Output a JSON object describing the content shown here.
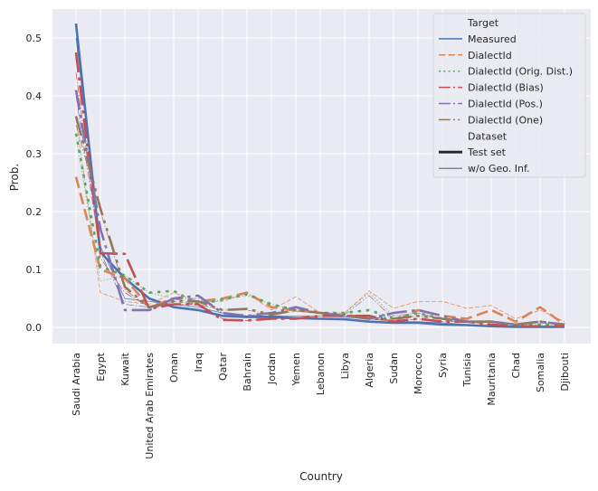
{
  "chart_data": {
    "type": "line",
    "xlabel": "Country",
    "ylabel": "Prob.",
    "ylim": [
      -0.028,
      0.55
    ],
    "yticks": [
      0.0,
      0.1,
      0.2,
      0.3,
      0.4,
      0.5
    ],
    "ytick_labels": [
      "0.0",
      "0.1",
      "0.2",
      "0.3",
      "0.4",
      "0.5"
    ],
    "grid": true,
    "legend_position": "top-right",
    "categories": [
      "Saudi Arabia",
      "Egypt",
      "Kuwait",
      "United Arab Emirates",
      "Oman",
      "Iraq",
      "Qatar",
      "Bahrain",
      "Jordan",
      "Yemen",
      "Lebanon",
      "Libya",
      "Algeria",
      "Sudan",
      "Morocco",
      "Syria",
      "Tunisia",
      "Mauritania",
      "Chad",
      "Somalia",
      "Djibouti"
    ],
    "legend": {
      "target_title": "Target",
      "dataset_title": "Dataset",
      "dataset_entries": [
        {
          "name": "Test set",
          "style": "thick"
        },
        {
          "name": "w/o Geo. Inf.",
          "style": "thin"
        }
      ]
    },
    "series": [
      {
        "name": "Measured",
        "color": "#4c72b0",
        "dash": "solid",
        "dataset": "Test set",
        "values": [
          0.525,
          0.13,
          0.085,
          0.05,
          0.035,
          0.03,
          0.02,
          0.018,
          0.018,
          0.016,
          0.015,
          0.014,
          0.01,
          0.008,
          0.008,
          0.005,
          0.004,
          0.002,
          0.001,
          0.001,
          0.001
        ]
      },
      {
        "name": "DialectId",
        "color": "#dd8452",
        "dash": "dashed",
        "dataset": "Test set",
        "values": [
          0.26,
          0.1,
          0.085,
          0.035,
          0.05,
          0.045,
          0.05,
          0.06,
          0.035,
          0.03,
          0.025,
          0.02,
          0.02,
          0.01,
          0.03,
          0.02,
          0.015,
          0.03,
          0.01,
          0.035,
          0.005
        ]
      },
      {
        "name": "DialectId (Orig. Dist.)",
        "color": "#55a868",
        "dash": "dotted",
        "dataset": "Test set",
        "values": [
          0.335,
          0.105,
          0.09,
          0.06,
          0.063,
          0.04,
          0.048,
          0.057,
          0.04,
          0.03,
          0.025,
          0.025,
          0.03,
          0.015,
          0.025,
          0.015,
          0.01,
          0.01,
          0.005,
          0.005,
          0.003
        ]
      },
      {
        "name": "DialectId (Bias)",
        "color": "#c44e52",
        "dash": "dashdot",
        "dataset": "Test set",
        "values": [
          0.475,
          0.128,
          0.127,
          0.032,
          0.04,
          0.04,
          0.013,
          0.012,
          0.015,
          0.015,
          0.02,
          0.02,
          0.02,
          0.01,
          0.015,
          0.01,
          0.01,
          0.005,
          0.002,
          0.002,
          0.002
        ]
      },
      {
        "name": "DialectId (Pos.)",
        "color": "#8172b3",
        "dash": "dashdot",
        "dataset": "Test set",
        "values": [
          0.41,
          0.17,
          0.03,
          0.03,
          0.05,
          0.055,
          0.025,
          0.02,
          0.025,
          0.035,
          0.025,
          0.02,
          0.015,
          0.025,
          0.03,
          0.02,
          0.01,
          0.01,
          0.005,
          0.01,
          0.005
        ]
      },
      {
        "name": "DialectId (One)",
        "color": "#937860",
        "dash": "dashdotdot",
        "dataset": "Test set",
        "values": [
          0.365,
          0.205,
          0.07,
          0.035,
          0.045,
          0.045,
          0.03,
          0.032,
          0.022,
          0.03,
          0.025,
          0.022,
          0.015,
          0.015,
          0.02,
          0.015,
          0.01,
          0.01,
          0.005,
          0.01,
          0.005
        ]
      },
      {
        "name": "Measured",
        "color": "#4c72b0",
        "dash": "solid",
        "dataset": "w/o Geo. Inf.",
        "values": [
          0.5,
          0.14,
          0.05,
          0.045,
          0.04,
          0.035,
          0.025,
          0.02,
          0.02,
          0.02,
          0.02,
          0.018,
          0.015,
          0.01,
          0.01,
          0.008,
          0.005,
          0.003,
          0.002,
          0.001,
          0.001
        ]
      },
      {
        "name": "DialectId",
        "color": "#dd8452",
        "dash": "dashed",
        "dataset": "w/o Geo. Inf.",
        "values": [
          0.36,
          0.06,
          0.045,
          0.04,
          0.06,
          0.045,
          0.045,
          0.06,
          0.03,
          0.053,
          0.025,
          0.025,
          0.063,
          0.033,
          0.045,
          0.045,
          0.033,
          0.038,
          0.015,
          0.03,
          0.01
        ]
      },
      {
        "name": "DialectId (Orig. Dist.)",
        "color": "#55a868",
        "dash": "dotted",
        "dataset": "w/o Geo. Inf.",
        "values": [
          0.33,
          0.08,
          0.09,
          0.06,
          0.05,
          0.04,
          0.048,
          0.055,
          0.04,
          0.03,
          0.025,
          0.025,
          0.06,
          0.02,
          0.025,
          0.015,
          0.01,
          0.01,
          0.005,
          0.005,
          0.003
        ]
      },
      {
        "name": "DialectId (Bias)",
        "color": "#c44e52",
        "dash": "dashdot",
        "dataset": "w/o Geo. Inf.",
        "values": [
          0.44,
          0.12,
          0.06,
          0.035,
          0.04,
          0.04,
          0.015,
          0.012,
          0.015,
          0.015,
          0.02,
          0.02,
          0.02,
          0.01,
          0.015,
          0.01,
          0.01,
          0.005,
          0.002,
          0.002,
          0.002
        ]
      },
      {
        "name": "DialectId (Pos.)",
        "color": "#8172b3",
        "dash": "dashdot",
        "dataset": "w/o Geo. Inf.",
        "values": [
          0.4,
          0.13,
          0.04,
          0.035,
          0.05,
          0.05,
          0.025,
          0.02,
          0.025,
          0.03,
          0.025,
          0.02,
          0.015,
          0.02,
          0.025,
          0.015,
          0.01,
          0.01,
          0.005,
          0.008,
          0.004
        ]
      },
      {
        "name": "DialectId (One)",
        "color": "#937860",
        "dash": "dashdotdot",
        "dataset": "w/o Geo. Inf.",
        "values": [
          0.35,
          0.2,
          0.065,
          0.035,
          0.045,
          0.04,
          0.03,
          0.03,
          0.022,
          0.028,
          0.025,
          0.022,
          0.055,
          0.015,
          0.02,
          0.015,
          0.01,
          0.01,
          0.005,
          0.01,
          0.005
        ]
      }
    ]
  }
}
